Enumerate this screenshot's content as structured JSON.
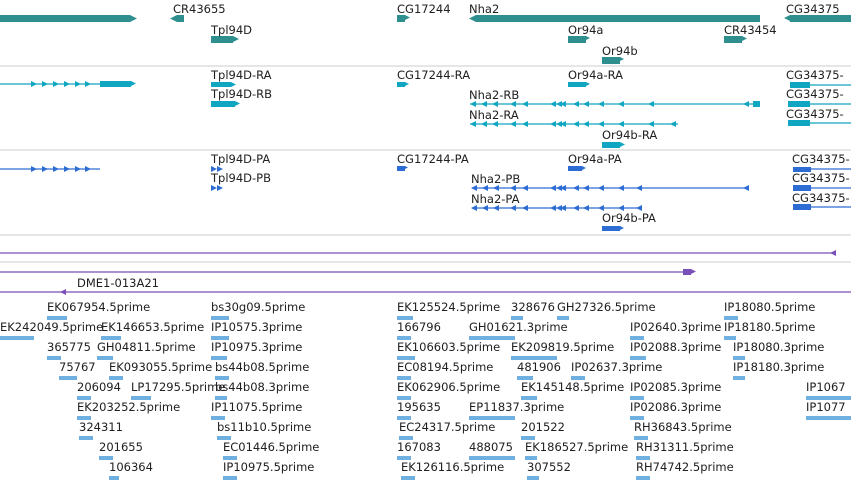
{
  "colors": {
    "gene": "#2f8f8f",
    "mrna": "#10a5c0",
    "protein": "#2d6cd2",
    "misc": "#7a4fb8",
    "est": "#6fb0e0",
    "divider": "#cccccc"
  },
  "icons": [
    "arrowhead-icon"
  ],
  "tracks": [
    {
      "id": "genes",
      "features": [
        {
          "label": "CR43655"
        },
        {
          "label": "Tpl94D"
        },
        {
          "label": "CG17244"
        },
        {
          "label": "Nha2"
        },
        {
          "label": "Or94a"
        },
        {
          "label": "Or94b"
        },
        {
          "label": "CR43454"
        },
        {
          "label": "CG34375"
        }
      ]
    },
    {
      "id": "transcripts",
      "features": [
        {
          "label": "Tpl94D-RA"
        },
        {
          "label": "Tpl94D-RB"
        },
        {
          "label": "CG17244-RA"
        },
        {
          "label": "Nha2-RB"
        },
        {
          "label": "Nha2-RA"
        },
        {
          "label": "Or94a-RA"
        },
        {
          "label": "Or94b-RA"
        },
        {
          "label": "CG34375-"
        },
        {
          "label": "CG34375-"
        },
        {
          "label": "CG34375-"
        }
      ]
    },
    {
      "id": "proteins",
      "features": [
        {
          "label": "Tpl94D-PA"
        },
        {
          "label": "Tpl94D-PB"
        },
        {
          "label": "CG17244-PA"
        },
        {
          "label": "Nha2-PB"
        },
        {
          "label": "Nha2-PA"
        },
        {
          "label": "Or94a-PA"
        },
        {
          "label": "Or94b-PA"
        },
        {
          "label": "CG34375-"
        },
        {
          "label": "CG34375-"
        },
        {
          "label": "CG34375-"
        }
      ]
    },
    {
      "id": "clones",
      "features": [
        {
          "label": "DME1-013A21"
        }
      ]
    },
    {
      "id": "ests",
      "features": [
        {
          "label": "EK067954.5prime"
        },
        {
          "label": "bs30g09.5prime"
        },
        {
          "label": "EK125524.5prime"
        },
        {
          "label": "328676"
        },
        {
          "label": "GH27326.5prime"
        },
        {
          "label": "IP18080.5prime"
        },
        {
          "label": "EK242049.5prime"
        },
        {
          "label": "EK146653.5prime"
        },
        {
          "label": "IP10575.3prime"
        },
        {
          "label": "166796"
        },
        {
          "label": "GH01621.3prime"
        },
        {
          "label": "IP02640.3prime"
        },
        {
          "label": "IP18180.5prime"
        },
        {
          "label": "365775"
        },
        {
          "label": "GH04811.5prime"
        },
        {
          "label": "IP10975.3prime"
        },
        {
          "label": "EK106603.5prime"
        },
        {
          "label": "EK209819.5prime"
        },
        {
          "label": "IP02088.3prime"
        },
        {
          "label": "IP18080.3prime"
        },
        {
          "label": "75767"
        },
        {
          "label": "EK093055.5prime"
        },
        {
          "label": "bs44b08.5prime"
        },
        {
          "label": "EC08194.5prime"
        },
        {
          "label": "481906"
        },
        {
          "label": "IP02637.3prime"
        },
        {
          "label": "IP18180.3prime"
        },
        {
          "label": "206094"
        },
        {
          "label": "LP17295.5prime"
        },
        {
          "label": "bs44b08.3prime"
        },
        {
          "label": "EK062906.5prime"
        },
        {
          "label": "EK145148.5prime"
        },
        {
          "label": "IP02085.3prime"
        },
        {
          "label": "IP1067"
        },
        {
          "label": "EK203252.5prime"
        },
        {
          "label": "IP11075.5prime"
        },
        {
          "label": "195635"
        },
        {
          "label": "EP11837.3prime"
        },
        {
          "label": "IP02086.3prime"
        },
        {
          "label": "IP1077"
        },
        {
          "label": "324311"
        },
        {
          "label": "bs11b10.5prime"
        },
        {
          "label": "EC24317.5prime"
        },
        {
          "label": "201522"
        },
        {
          "label": "RH36843.5prime"
        },
        {
          "label": "201655"
        },
        {
          "label": "EC01446.5prime"
        },
        {
          "label": "167083"
        },
        {
          "label": "488075"
        },
        {
          "label": "EK186527.5prime"
        },
        {
          "label": "RH31311.5prime"
        },
        {
          "label": "106364"
        },
        {
          "label": "IP10975.5prime"
        },
        {
          "label": "EK126116.5prime"
        },
        {
          "label": "307552"
        },
        {
          "label": "RH74742.5prime"
        }
      ]
    }
  ]
}
